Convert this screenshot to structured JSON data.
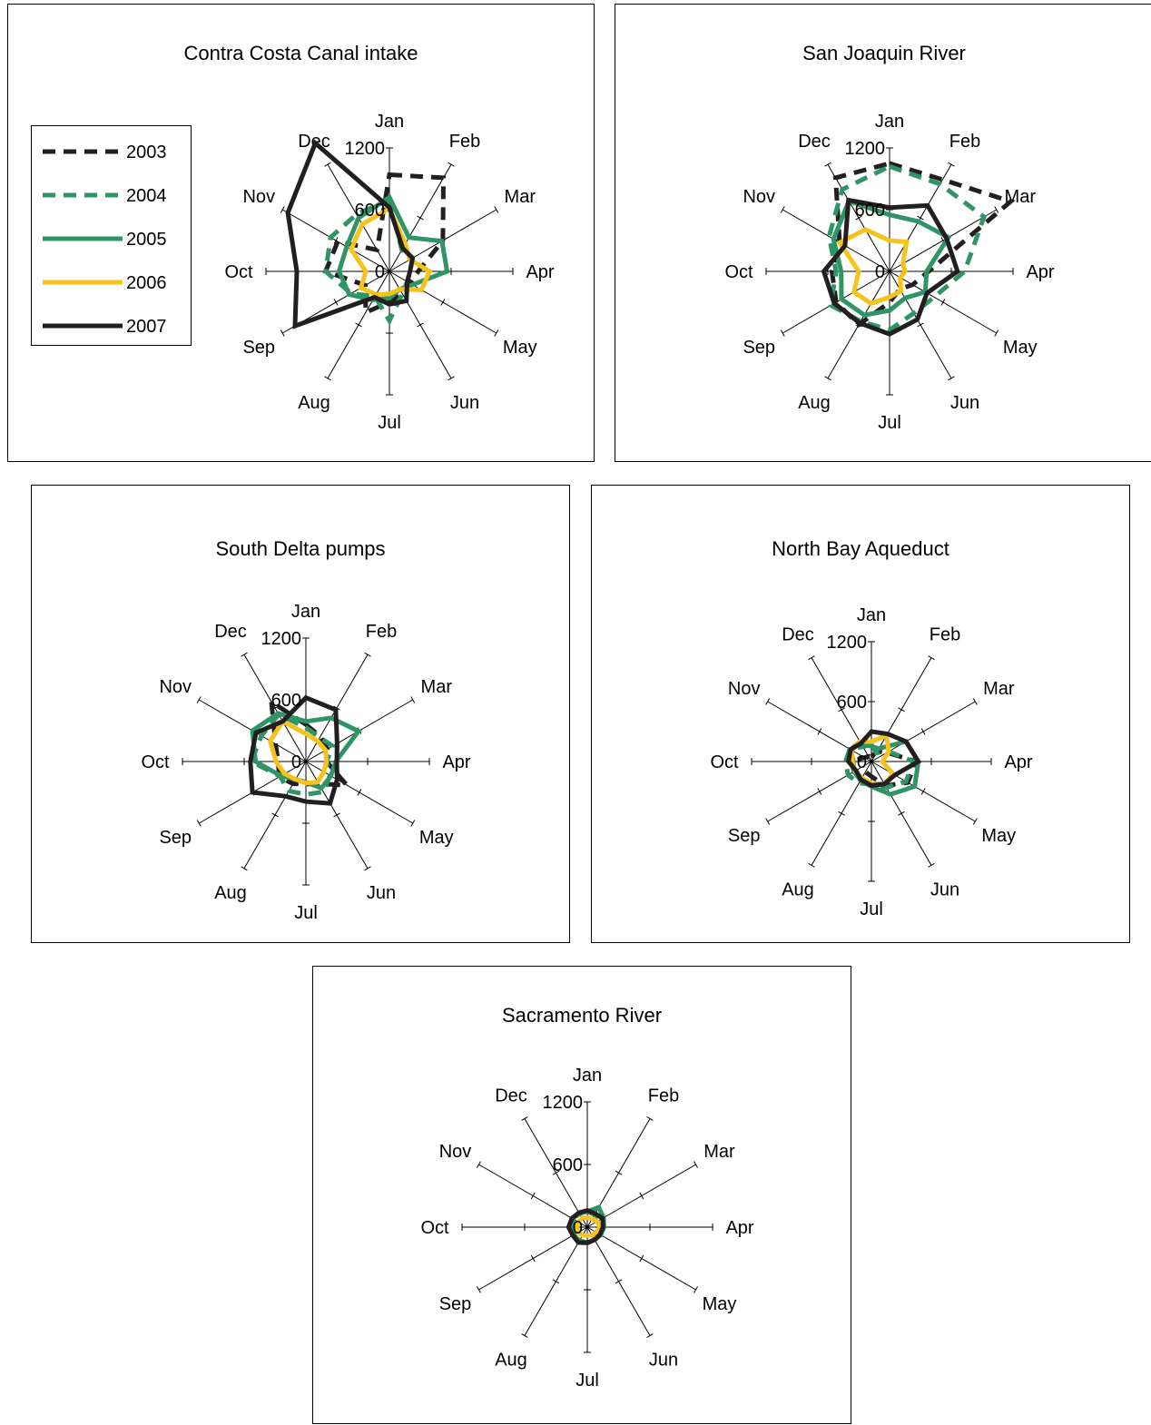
{
  "chart_data": {
    "type": "radar",
    "months": [
      "Jan",
      "Feb",
      "Mar",
      "Apr",
      "May",
      "Jun",
      "Jul",
      "Aug",
      "Sep",
      "Oct",
      "Nov",
      "Dec"
    ],
    "radial_ticks": [
      "0",
      "600",
      "1200"
    ],
    "rlim": [
      0,
      1200
    ],
    "legend": {
      "placement": "left",
      "years": [
        "2003",
        "2004",
        "2005",
        "2006",
        "2007"
      ]
    },
    "series_styles": {
      "2003": {
        "color": "#231f20",
        "dash": "dashed"
      },
      "2004": {
        "color": "#2f9466",
        "dash": "dashed"
      },
      "2005": {
        "color": "#2f9466",
        "dash": "solid"
      },
      "2006": {
        "color": "#f5c31c",
        "dash": "solid"
      },
      "2007": {
        "color": "#231f20",
        "dash": "solid"
      }
    },
    "charts": [
      {
        "title": "Contra Costa Canal intake",
        "series": [
          {
            "name": "2003",
            "values": [
              940,
              1050,
              600,
              280,
              230,
              250,
              300,
              460,
              270,
              620,
              580,
              240
            ]
          },
          {
            "name": "2004",
            "values": [
              700,
              240,
              260,
              200,
              200,
              250,
              480,
              280,
              430,
              620,
              660,
              640
            ]
          },
          {
            "name": "2005",
            "values": [
              720,
              380,
              590,
              560,
              260,
              200,
              260,
              320,
              450,
              490,
              480,
              600
            ]
          },
          {
            "name": "2006",
            "values": [
              610,
              310,
              230,
              390,
              360,
              200,
              220,
              260,
              320,
              230,
              430,
              530
            ]
          },
          {
            "name": "2007",
            "values": [
              620,
              260,
              260,
              200,
              200,
              330,
              320,
              290,
              1060,
              900,
              1140,
              1440
            ]
          }
        ]
      },
      {
        "title": "San Joaquin River",
        "series": [
          {
            "name": "2003",
            "values": [
              1050,
              1030,
              1360,
              380,
              260,
              200,
              300,
              600,
              600,
              560,
              560,
              1050
            ]
          },
          {
            "name": "2004",
            "values": [
              1020,
              980,
              1060,
              730,
              500,
              470,
              570,
              560,
              660,
              520,
              680,
              920
            ]
          },
          {
            "name": "2005",
            "values": [
              550,
              560,
              660,
              360,
              400,
              300,
              380,
              490,
              540,
              470,
              630,
              790
            ]
          },
          {
            "name": "2006",
            "values": [
              300,
              330,
              150,
              150,
              120,
              220,
              250,
              360,
              400,
              300,
              560,
              470
            ]
          },
          {
            "name": "2007",
            "values": [
              620,
              740,
              640,
              660,
              420,
              540,
              610,
              580,
              620,
              640,
              500,
              800
            ]
          }
        ]
      },
      {
        "title": "South Delta pumps",
        "series": [
          {
            "name": "2003",
            "values": [
              360,
              280,
              240,
              200,
              460,
              250,
              220,
              250,
              300,
              270,
              340,
              670
            ]
          },
          {
            "name": "2004",
            "values": [
              330,
              270,
              300,
              200,
              270,
              340,
              320,
              330,
              290,
              530,
              500,
              530
            ]
          },
          {
            "name": "2005",
            "values": [
              390,
              490,
              590,
              290,
              280,
              300,
              200,
              200,
              280,
              490,
              600,
              540
            ]
          },
          {
            "name": "2006",
            "values": [
              270,
              230,
              220,
              200,
              200,
              230,
              210,
              200,
              240,
              290,
              400,
              450
            ]
          },
          {
            "name": "2007",
            "values": [
              620,
              580,
              350,
              300,
              350,
              470,
              390,
              390,
              600,
              540,
              560,
              450
            ]
          }
        ]
      },
      {
        "title": "North Bay Aqueduct",
        "series": [
          {
            "name": "2003",
            "values": [
              50,
              120,
              180,
              450,
              420,
              280,
              150,
              120,
              200,
              200,
              80,
              60
            ]
          },
          {
            "name": "2004",
            "values": [
              170,
              100,
              200,
              420,
              400,
              300,
              230,
              250,
              270,
              260,
              250,
              170
            ]
          },
          {
            "name": "2005",
            "values": [
              150,
              150,
              400,
              470,
              500,
              380,
              250,
              220,
              200,
              180,
              240,
              230
            ]
          },
          {
            "name": "2006",
            "values": [
              200,
              300,
              200,
              110,
              250,
              260,
              220,
              190,
              190,
              190,
              230,
              230
            ]
          },
          {
            "name": "2007",
            "values": [
              300,
              320,
              400,
              470,
              270,
              260,
              240,
              210,
              180,
              230,
              240,
              210
            ]
          }
        ]
      },
      {
        "title": "Sacramento River",
        "series": [
          {
            "name": "2003",
            "values": [
              160,
              150,
              150,
              150,
              150,
              140,
              150,
              150,
              150,
              160,
              170,
              150
            ]
          },
          {
            "name": "2004",
            "values": [
              150,
              140,
              150,
              140,
              140,
              140,
              150,
              150,
              150,
              160,
              160,
              150
            ]
          },
          {
            "name": "2005",
            "values": [
              150,
              220,
              180,
              160,
              150,
              140,
              150,
              150,
              150,
              150,
              160,
              160
            ]
          },
          {
            "name": "2006",
            "values": [
              90,
              90,
              110,
              120,
              100,
              90,
              80,
              90,
              100,
              100,
              100,
              100
            ]
          },
          {
            "name": "2007",
            "values": [
              160,
              150,
              170,
              150,
              140,
              140,
              150,
              170,
              160,
              180,
              170,
              160
            ]
          }
        ]
      }
    ]
  }
}
